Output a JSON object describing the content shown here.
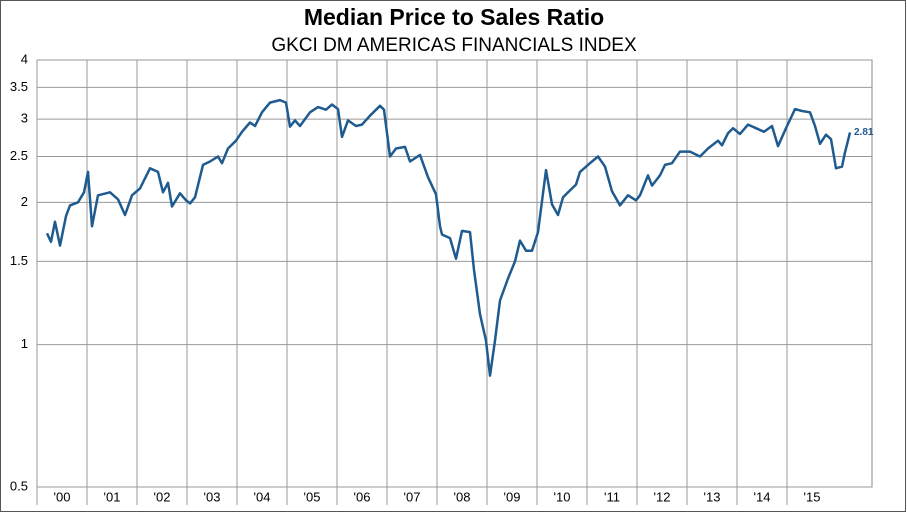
{
  "chart_data": {
    "type": "line",
    "title": "Median Price to Sales Ratio",
    "subtitle": "GKCI DM AMERICAS FINANCIALS INDEX",
    "log_scale": true,
    "grid": true,
    "color": "#1f5b8e",
    "xlim": [
      2000,
      2016.7
    ],
    "xticks": [
      {
        "value": 2000,
        "label": "'00"
      },
      {
        "value": 2001,
        "label": "'01"
      },
      {
        "value": 2002,
        "label": "'02"
      },
      {
        "value": 2003,
        "label": "'03"
      },
      {
        "value": 2004,
        "label": "'04"
      },
      {
        "value": 2005,
        "label": "'05"
      },
      {
        "value": 2006,
        "label": "'06"
      },
      {
        "value": 2007,
        "label": "'07"
      },
      {
        "value": 2008,
        "label": "'08"
      },
      {
        "value": 2009,
        "label": "'09"
      },
      {
        "value": 2010,
        "label": "'10"
      },
      {
        "value": 2011,
        "label": "'11"
      },
      {
        "value": 2012,
        "label": "'12"
      },
      {
        "value": 2013,
        "label": "'13"
      },
      {
        "value": 2014,
        "label": "'14"
      },
      {
        "value": 2015,
        "label": "'15"
      }
    ],
    "ylim": [
      0.5,
      4
    ],
    "yticks": [
      0.5,
      1,
      1.5,
      2,
      2.5,
      3,
      3.5,
      4
    ],
    "x": [
      2000.2,
      2000.28,
      2000.36,
      2000.46,
      2000.58,
      2000.66,
      2000.82,
      2000.94,
      2001.02,
      2001.1,
      2001.22,
      2001.46,
      2001.62,
      2001.76,
      2001.9,
      2002.06,
      2002.26,
      2002.42,
      2002.52,
      2002.62,
      2002.7,
      2002.86,
      2002.98,
      2003.06,
      2003.16,
      2003.32,
      2003.46,
      2003.62,
      2003.7,
      2003.82,
      2003.98,
      2004.1,
      2004.26,
      2004.36,
      2004.5,
      2004.66,
      2004.86,
      2004.98,
      2005.06,
      2005.16,
      2005.26,
      2005.46,
      2005.62,
      2005.78,
      2005.9,
      2006.02,
      2006.1,
      2006.22,
      2006.38,
      2006.5,
      2006.66,
      2006.86,
      2006.94,
      2007.06,
      2007.18,
      2007.36,
      2007.46,
      2007.66,
      2007.82,
      2007.98,
      2008.06,
      2008.1,
      2008.26,
      2008.38,
      2008.5,
      2008.66,
      2008.74,
      2008.86,
      2008.98,
      2009.06,
      2009.16,
      2009.26,
      2009.42,
      2009.56,
      2009.66,
      2009.78,
      2009.9,
      2010.02,
      2010.18,
      2010.3,
      2010.42,
      2010.52,
      2010.66,
      2010.78,
      2010.86,
      2011.06,
      2011.22,
      2011.36,
      2011.5,
      2011.66,
      2011.82,
      2011.98,
      2012.06,
      2012.22,
      2012.3,
      2012.46,
      2012.56,
      2012.7,
      2012.86,
      2013.06,
      2013.26,
      2013.42,
      2013.62,
      2013.7,
      2013.82,
      2013.92,
      2014.06,
      2014.22,
      2014.38,
      2014.54,
      2014.7,
      2014.82,
      2014.98,
      2015.16,
      2015.3,
      2015.46,
      2015.56,
      2015.66,
      2015.78,
      2015.88,
      2015.98,
      2016.1,
      2016.16,
      2016.26
    ],
    "values": [
      1.72,
      1.65,
      1.82,
      1.62,
      1.87,
      1.97,
      2.0,
      2.1,
      2.32,
      1.78,
      2.07,
      2.1,
      2.03,
      1.88,
      2.07,
      2.14,
      2.36,
      2.32,
      2.1,
      2.2,
      1.96,
      2.09,
      2.02,
      1.99,
      2.05,
      2.4,
      2.44,
      2.5,
      2.42,
      2.6,
      2.7,
      2.82,
      2.95,
      2.9,
      3.1,
      3.25,
      3.29,
      3.25,
      2.89,
      2.98,
      2.9,
      3.1,
      3.18,
      3.14,
      3.22,
      3.15,
      2.75,
      2.98,
      2.9,
      2.92,
      3.05,
      3.2,
      3.14,
      2.5,
      2.6,
      2.62,
      2.44,
      2.52,
      2.26,
      2.08,
      1.78,
      1.71,
      1.68,
      1.52,
      1.74,
      1.73,
      1.44,
      1.16,
      1.02,
      0.86,
      1.02,
      1.24,
      1.38,
      1.5,
      1.66,
      1.58,
      1.58,
      1.73,
      2.34,
      1.98,
      1.88,
      2.05,
      2.12,
      2.18,
      2.32,
      2.42,
      2.5,
      2.38,
      2.11,
      1.97,
      2.07,
      2.02,
      2.07,
      2.28,
      2.17,
      2.28,
      2.4,
      2.42,
      2.56,
      2.56,
      2.5,
      2.6,
      2.7,
      2.64,
      2.8,
      2.87,
      2.79,
      2.92,
      2.87,
      2.82,
      2.9,
      2.63,
      2.87,
      3.15,
      3.12,
      3.1,
      2.9,
      2.66,
      2.78,
      2.72,
      2.36,
      2.38,
      2.55,
      2.81
    ]
  }
}
